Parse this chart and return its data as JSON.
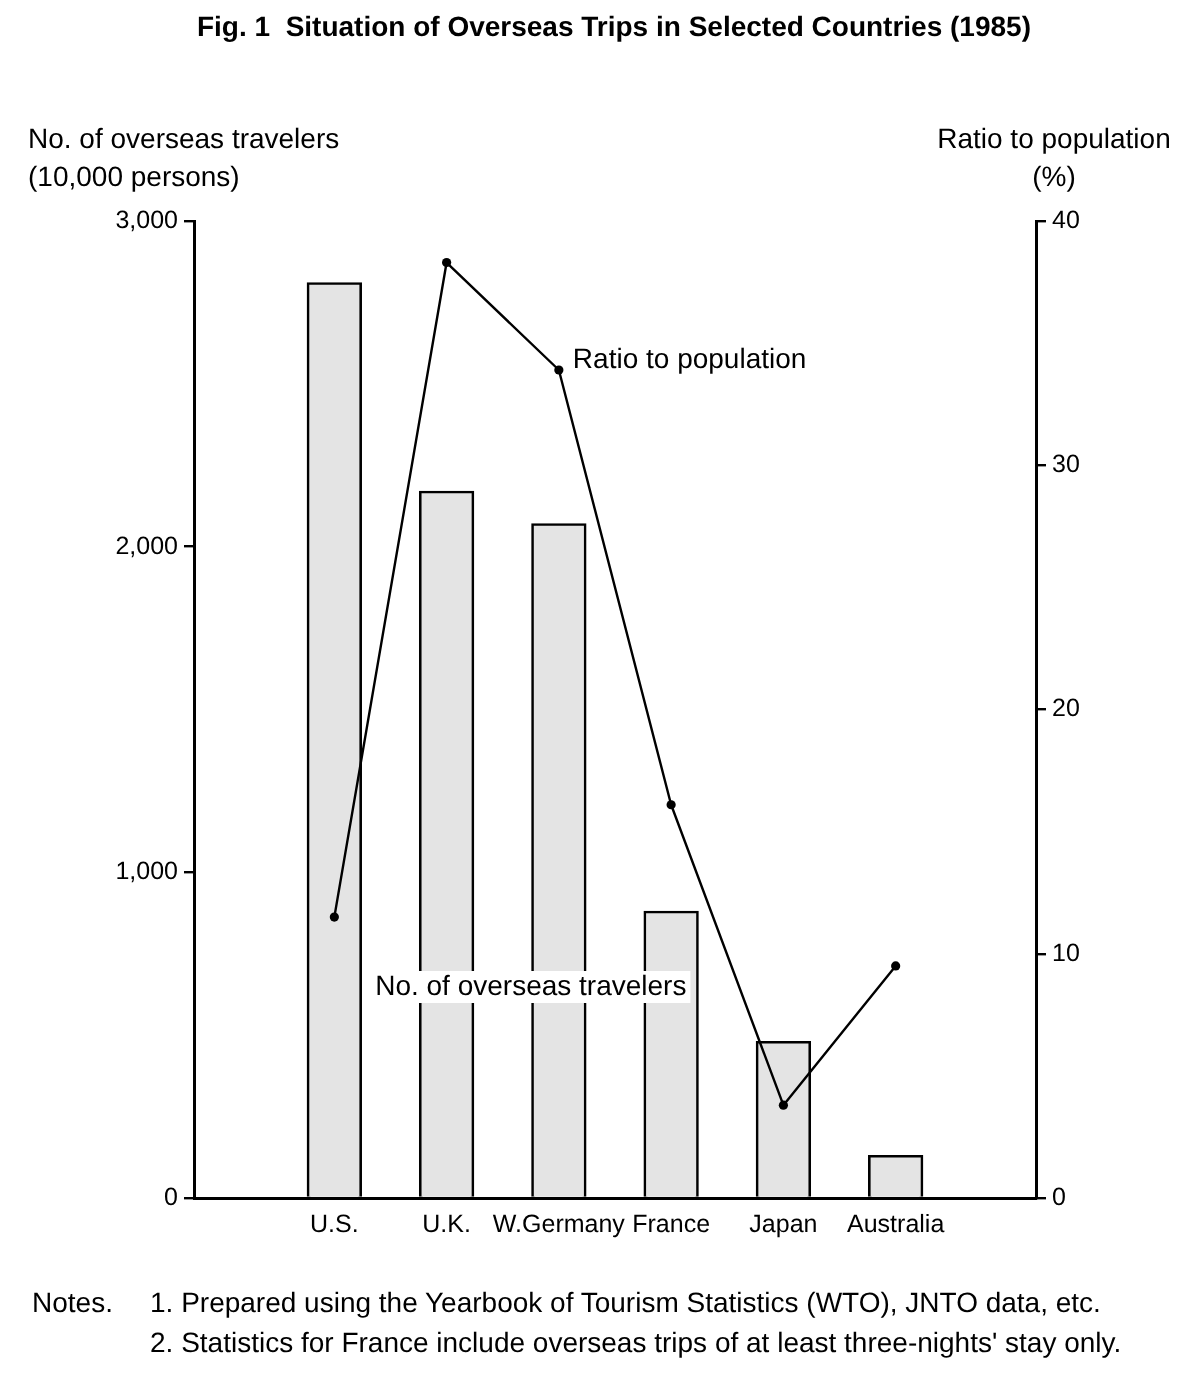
{
  "chart_data": {
    "type": "bar",
    "title": "Fig. 1  Situation of Overseas Trips in Selected Countries (1985)",
    "ylabel": "No. of overseas travelers\n(10,000 persons)",
    "y2label": "Ratio to population\n(%)",
    "categories": [
      "U.S.",
      "U.K.",
      "W.Germany",
      "France",
      "Japan",
      "Australia"
    ],
    "series": [
      {
        "name": "No. of overseas travelers",
        "color": "#e4e4e4",
        "values": [
          2810,
          2170,
          2070,
          880,
          480,
          130
        ]
      },
      {
        "name": "Ratio to population",
        "type": "line",
        "axis": "y2",
        "color": "#000000",
        "values": [
          11.5,
          38.3,
          33.9,
          16.1,
          3.8,
          9.5
        ]
      }
    ],
    "ylim": [
      0,
      3000
    ],
    "yticks": [
      0,
      {
        "value": 1000,
        "label": "1,000"
      },
      {
        "value": 2000,
        "label": "2,000"
      },
      {
        "value": 3000,
        "label": "3,000"
      }
    ],
    "y2lim": [
      0,
      40
    ],
    "y2ticks": [
      0,
      10,
      20,
      30,
      40
    ],
    "marker": "circle",
    "line_style": "solid",
    "annotations": [
      "Notes.",
      "1. Prepared using the Yearbook of Tourism Statistics (WTO), JNTO data, etc.",
      "2. Statistics for France include overseas trips of at least three-nights' stay only."
    ]
  }
}
